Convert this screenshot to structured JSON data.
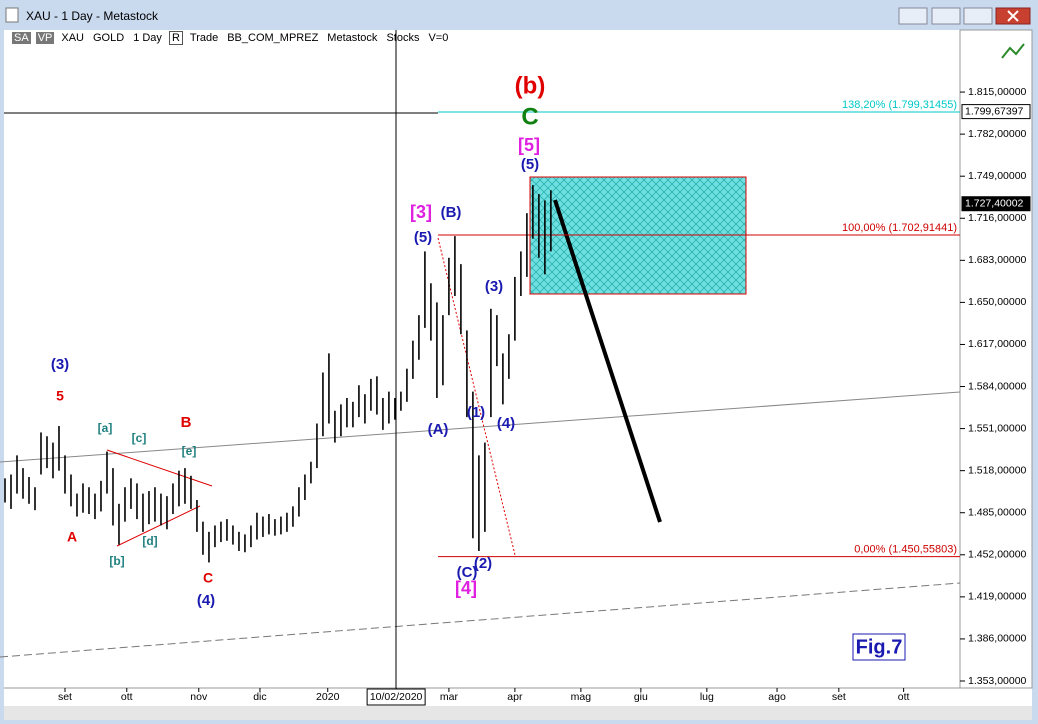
{
  "window": {
    "title": "XAU - 1 Day - Metastock"
  },
  "toolbar": [
    "SA",
    "VP",
    "XAU",
    "GOLD",
    "1 Day",
    "R",
    "Trade",
    "BB_COM_MPREZ",
    "Metastock",
    "Stocks",
    "V=0"
  ],
  "chart_data": {
    "type": "ohlc",
    "high": [
      1.512,
      1.515,
      1.53,
      1.52,
      1.513,
      1.505,
      1.548,
      1.545,
      1.54,
      1.553,
      1.53,
      1.515,
      1.5,
      1.508,
      1.505,
      1.5,
      1.51,
      1.533,
      1.52,
      1.492,
      1.505,
      1.512,
      1.508,
      1.5,
      1.502,
      1.505,
      1.5,
      1.498,
      1.508,
      1.518,
      1.52,
      1.514,
      1.495,
      1.478,
      1.47,
      1.475,
      1.478,
      1.48,
      1.475,
      1.47,
      1.468,
      1.475,
      1.485,
      1.482,
      1.484,
      1.48,
      1.482,
      1.485,
      1.49,
      1.505,
      1.515,
      1.525,
      1.555,
      1.595,
      1.61,
      1.565,
      1.57,
      1.575,
      1.572,
      1.585,
      1.578,
      1.59,
      1.592,
      1.575,
      1.58,
      1.575,
      1.58,
      1.598,
      1.62,
      1.64,
      1.69,
      1.665,
      1.65,
      1.64,
      1.685,
      1.702,
      1.68,
      1.628,
      1.58,
      1.53,
      1.54,
      1.645,
      1.64,
      1.61,
      1.625,
      1.67,
      1.69,
      1.72,
      1.742,
      1.735,
      1.73,
      1.738
    ],
    "low": [
      1.493,
      1.488,
      1.5,
      1.496,
      1.492,
      1.487,
      1.515,
      1.52,
      1.512,
      1.518,
      1.5,
      1.49,
      1.482,
      1.485,
      1.484,
      1.48,
      1.486,
      1.5,
      1.475,
      1.46,
      1.478,
      1.488,
      1.48,
      1.47,
      1.476,
      1.478,
      1.475,
      1.472,
      1.484,
      1.49,
      1.492,
      1.488,
      1.47,
      1.452,
      1.446,
      1.458,
      1.462,
      1.463,
      1.46,
      1.455,
      1.454,
      1.458,
      1.464,
      1.466,
      1.468,
      1.467,
      1.468,
      1.47,
      1.474,
      1.482,
      1.495,
      1.508,
      1.52,
      1.545,
      1.555,
      1.54,
      1.545,
      1.552,
      1.552,
      1.56,
      1.555,
      1.565,
      1.562,
      1.55,
      1.555,
      1.558,
      1.565,
      1.572,
      1.59,
      1.605,
      1.63,
      1.62,
      1.575,
      1.585,
      1.64,
      1.655,
      1.625,
      1.56,
      1.465,
      1.455,
      1.47,
      1.56,
      1.6,
      1.57,
      1.59,
      1.62,
      1.655,
      1.67,
      1.7,
      1.685,
      1.672,
      1.69
    ],
    "color": "#000000",
    "xlim": [
      0,
      159.2
    ],
    "xticks": [
      {
        "value": 10,
        "label": "set"
      },
      {
        "value": 20.3,
        "label": "ott"
      },
      {
        "value": 32.3,
        "label": "nov"
      },
      {
        "value": 42.5,
        "label": "dic"
      },
      {
        "value": 53.8,
        "label": "2020"
      },
      {
        "value": 65.2,
        "label": "10/02/2020"
      },
      {
        "value": 74,
        "label": "mar"
      },
      {
        "value": 85,
        "label": "apr"
      },
      {
        "value": 96,
        "label": "mag"
      },
      {
        "value": 106,
        "label": "giu"
      },
      {
        "value": 117,
        "label": "lug"
      },
      {
        "value": 128.7,
        "label": "ago"
      },
      {
        "value": 139,
        "label": "set"
      },
      {
        "value": 149.8,
        "label": "ott"
      }
    ],
    "ylim": [
      1.3475,
      1.848
    ],
    "yticks": [
      {
        "value": 1.815,
        "label": "1.815,00000"
      },
      {
        "value": 1.782,
        "label": "1.782,00000"
      },
      {
        "value": 1.749,
        "label": "1.749,00000"
      },
      {
        "value": 1.716,
        "label": "1.716,00000"
      },
      {
        "value": 1.683,
        "label": "1.683,00000"
      },
      {
        "value": 1.65,
        "label": "1.650,00000"
      },
      {
        "value": 1.617,
        "label": "1.617,00000"
      },
      {
        "value": 1.584,
        "label": "1.584,00000"
      },
      {
        "value": 1.551,
        "label": "1.551,00000"
      },
      {
        "value": 1.518,
        "label": "1.518,00000"
      },
      {
        "value": 1.485,
        "label": "1.485,00000"
      },
      {
        "value": 1.452,
        "label": "1.452,00000"
      },
      {
        "value": 1.419,
        "label": "1.419,00000"
      },
      {
        "value": 1.386,
        "label": "1.386,00000"
      },
      {
        "value": 1.353,
        "label": "1.353,00000"
      }
    ],
    "fib_levels": [
      {
        "value": 1.79931455,
        "label": "138,20% (1.799,31455)",
        "color": "#00c8c8"
      },
      {
        "value": 1.70291441,
        "label": "100,00% (1.702,91441)",
        "color": "#d00000"
      },
      {
        "value": 1.45055803,
        "label": "0,00% (1.450,55803)",
        "color": "#d00000"
      }
    ],
    "price_markers": [
      {
        "value": 1.79967397,
        "label": "1.799,67397"
      },
      {
        "value": 1.72740002,
        "label": "1.727,40002"
      }
    ],
    "annotations": [
      {
        "text": "(b)",
        "color": "#e00000"
      },
      {
        "text": "C",
        "color": "#108010"
      },
      {
        "text": "[5]",
        "color": "#e020e0"
      },
      {
        "text": "(5)",
        "color": "#1a1ab0"
      },
      {
        "text": "[3]",
        "color": "#e020e0"
      },
      {
        "text": "(B)",
        "color": "#1a1ab0"
      },
      {
        "text": "(5)",
        "color": "#1a1ab0"
      },
      {
        "text": "(3)",
        "color": "#1a1ab0"
      },
      {
        "text": "(1)",
        "color": "#1a1ab0"
      },
      {
        "text": "(4)",
        "color": "#1a1ab0"
      },
      {
        "text": "(A)",
        "color": "#1a1ab0"
      },
      {
        "text": "(C)",
        "color": "#1a1ab0"
      },
      {
        "text": "(2)",
        "color": "#1a1ab0"
      },
      {
        "text": "[4]",
        "color": "#e020e0"
      },
      {
        "text": "(3)",
        "color": "#1a1ab0"
      },
      {
        "text": "5",
        "color": "#e00000"
      },
      {
        "text": "[a]",
        "color": "#208080"
      },
      {
        "text": "[c]",
        "color": "#208080"
      },
      {
        "text": "B",
        "color": "#e00000"
      },
      {
        "text": "[e]",
        "color": "#208080"
      },
      {
        "text": "A",
        "color": "#e00000"
      },
      {
        "text": "[d]",
        "color": "#208080"
      },
      {
        "text": "[b]",
        "color": "#208080"
      },
      {
        "text": "C",
        "color": "#e00000"
      },
      {
        "text": "(4)",
        "color": "#1a1ab0"
      }
    ],
    "figure_label": "Fig.7"
  }
}
